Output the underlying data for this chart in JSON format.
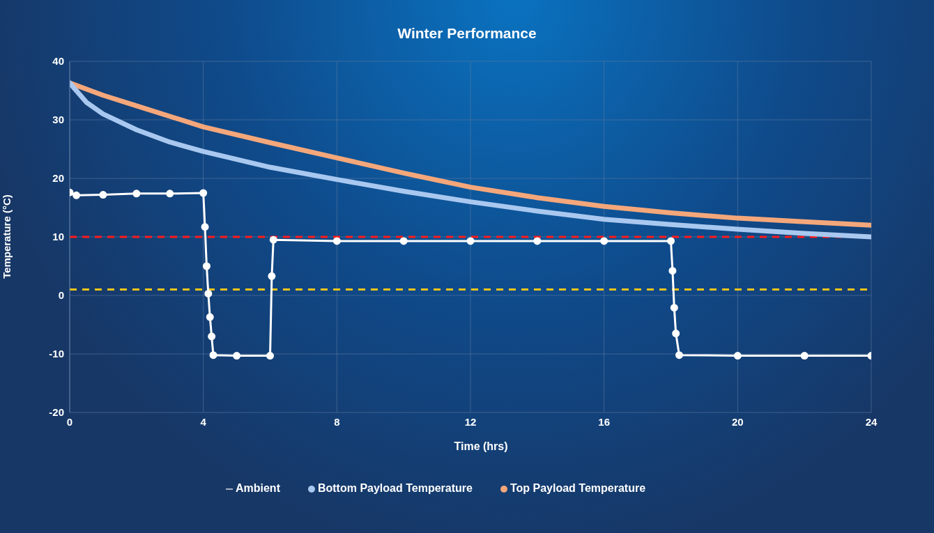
{
  "chart_data": {
    "type": "line",
    "title": "Winter Performance",
    "xlabel": "Time (hrs)",
    "ylabel": "Temperature (°C)",
    "series": [
      {
        "name": "Ambient",
        "color": "#ffffff",
        "marker": "circle",
        "x": [
          0,
          0.2,
          1,
          2,
          3,
          4,
          4.05,
          4.1,
          4.15,
          4.2,
          4.25,
          4.3,
          5,
          6,
          6.05,
          6.1,
          8,
          10,
          12,
          14,
          16,
          18,
          18.05,
          18.1,
          18.15,
          18.25,
          20,
          22,
          24
        ],
        "values": [
          17.6,
          17.1,
          17.2,
          17.4,
          17.4,
          17.5,
          11.7,
          5,
          0.3,
          -3.7,
          -7,
          -10.2,
          -10.3,
          -10.3,
          3.3,
          9.5,
          9.3,
          9.3,
          9.3,
          9.3,
          9.3,
          9.3,
          4.2,
          -2.1,
          -6.5,
          -10.2,
          -10.3,
          -10.3,
          -10.3
        ]
      },
      {
        "name": "Top Payload Temperature",
        "color": "#f4a77a",
        "marker": "none",
        "x": [
          0,
          1,
          2,
          4,
          6,
          8,
          10,
          12,
          14,
          16,
          18,
          20,
          22,
          24
        ],
        "values": [
          36.3,
          34.2,
          32.4,
          28.8,
          26.1,
          23.5,
          20.9,
          18.5,
          16.7,
          15.2,
          14.1,
          13.2,
          12.6,
          12.0
        ]
      },
      {
        "name": "Bottom Payload Temperature",
        "color": "#a9c8f0",
        "marker": "none",
        "x": [
          0,
          0.5,
          1,
          2,
          3,
          4,
          6,
          8,
          10,
          12,
          14,
          16,
          18,
          20,
          22,
          24
        ],
        "values": [
          36.3,
          33.0,
          31.0,
          28.3,
          26.2,
          24.6,
          21.9,
          19.8,
          17.8,
          16.0,
          14.4,
          13.0,
          12.1,
          11.3,
          10.6,
          10.0
        ]
      }
    ],
    "xlim": [
      0,
      24
    ],
    "xticks": [
      0,
      4,
      8,
      12,
      16,
      20,
      24
    ],
    "ylim": [
      -20,
      40
    ],
    "yticks": [
      -20,
      -10,
      0,
      10,
      20,
      30,
      40
    ],
    "ref_lines": [
      {
        "axis": "y",
        "value": 10,
        "color": "#ff1a1a",
        "line_style": "dashed"
      },
      {
        "axis": "y",
        "value": 1,
        "color": "#f5c518",
        "line_style": "dashed"
      }
    ],
    "grid": true,
    "legend": "bottom"
  }
}
